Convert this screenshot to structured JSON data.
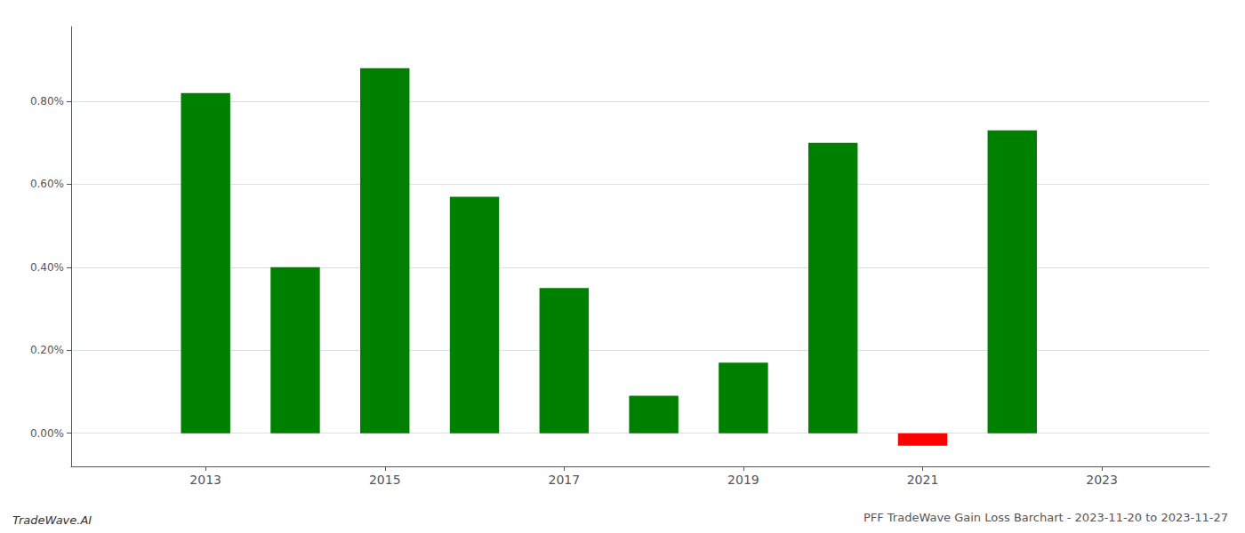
{
  "chart_data": {
    "type": "bar",
    "title": "PFF TradeWave Gain Loss Barchart - 2023-11-20 to 2023-11-27",
    "annotations": [
      "TradeWave.AI"
    ],
    "x": [
      2013,
      2014,
      2015,
      2016,
      2017,
      2018,
      2019,
      2020,
      2021,
      2022
    ],
    "values": [
      0.0082,
      0.004,
      0.0088,
      0.0057,
      0.0035,
      0.0009,
      0.0017,
      0.007,
      -0.0003,
      0.0073
    ],
    "colors": [
      "#008000",
      "#008000",
      "#008000",
      "#008000",
      "#008000",
      "#008000",
      "#008000",
      "#008000",
      "#ff0000",
      "#008000"
    ],
    "xlim": [
      2011.5,
      2024.2
    ],
    "xticks": [
      2013,
      2015,
      2017,
      2019,
      2021,
      2023
    ],
    "ylim": [
      -0.0008,
      0.0098
    ],
    "yticks": [
      {
        "value": 0.0,
        "label": "0.00%"
      },
      {
        "value": 0.002,
        "label": "0.20%"
      },
      {
        "value": 0.004,
        "label": "0.40%"
      },
      {
        "value": 0.006,
        "label": "0.60%"
      },
      {
        "value": 0.008,
        "label": "0.80%"
      }
    ],
    "grid": true
  }
}
